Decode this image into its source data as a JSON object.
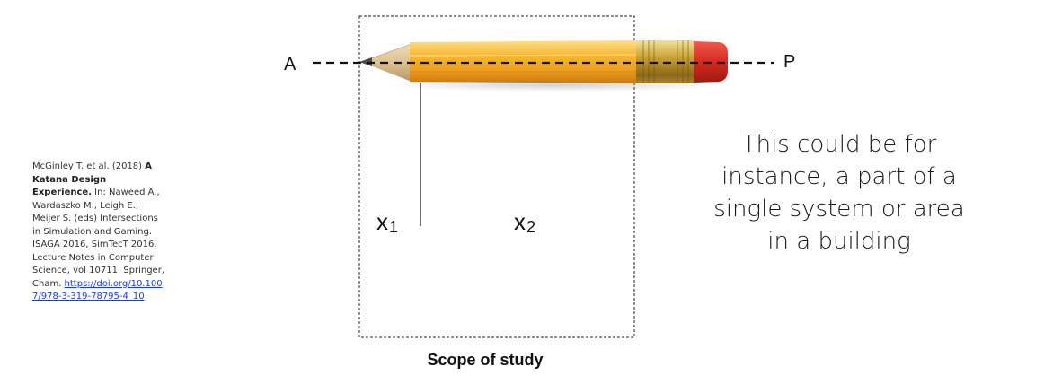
{
  "citation": {
    "authors_year": "McGinley T. et al. (2018) ",
    "title": "A Katana Design Experience.",
    "details": " In: Naweed A., Wardaszko M., Leigh E., Meijer S. (eds) Intersections in Simulation and Gaming. ISAGA 2016, SimTecT 2016. Lecture Notes in Computer Science, vol 10711. Springer, Cham. ",
    "link": "https://doi.org/10.1007/978-3-319-78795-4_10"
  },
  "diagram": {
    "point_a": "A",
    "point_p": "P",
    "x1_base": "x",
    "x1_sub": "1",
    "x2_base": "x",
    "x2_sub": "2",
    "scope_label": "Scope of study"
  },
  "note": "This could be for instance, a part of a single system or area in a building",
  "colors": {
    "pencil_body": "#f4b234",
    "eraser": "#d52a1f",
    "ferrule": "#c9a133",
    "link": "#1a3fd6"
  }
}
